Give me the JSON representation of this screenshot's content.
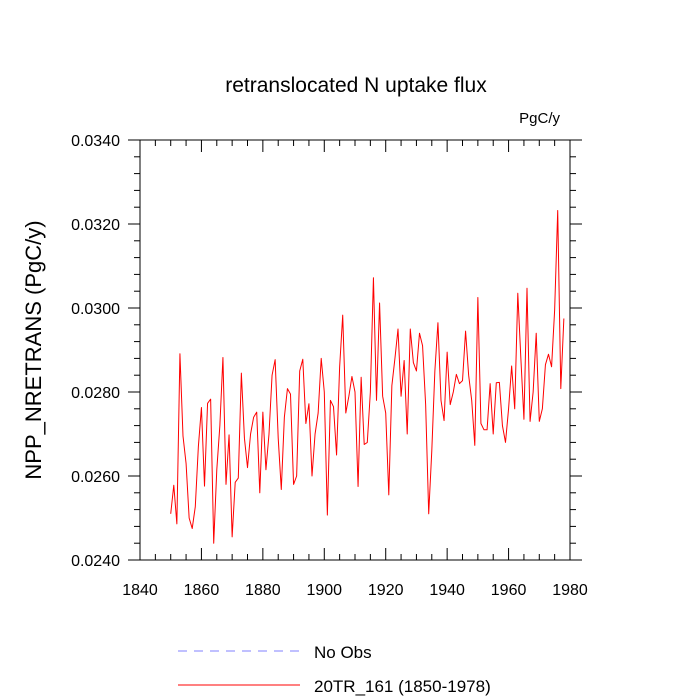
{
  "chart_data": {
    "type": "line",
    "title": "retranslocated N uptake flux",
    "units": "PgC/y",
    "ylabel": "NPP_NRETRANS  (PgC/y)",
    "xlabel": "",
    "xlim": [
      1840,
      1980
    ],
    "ylim": [
      0.024,
      0.034
    ],
    "x_ticks": [
      "1840",
      "1860",
      "1880",
      "1900",
      "1920",
      "1940",
      "1960",
      "1980"
    ],
    "y_ticks": [
      "0.0240",
      "0.0260",
      "0.0280",
      "0.0300",
      "0.0320",
      "0.0340"
    ],
    "grid": false,
    "legend_position": "bottom",
    "legend": [
      {
        "label": "No Obs",
        "color": "#8080ff",
        "style": "dashed"
      },
      {
        "label": "20TR_161 (1850-1978)",
        "color": "#ff0000",
        "style": "solid"
      }
    ],
    "series": [
      {
        "name": "20TR_161 (1850-1978)",
        "color": "#ff0000",
        "x_start": 1850,
        "x_step": 1,
        "values": [
          0.0251,
          0.02578,
          0.02486,
          0.02891,
          0.02695,
          0.0263,
          0.025,
          0.02475,
          0.02527,
          0.0267,
          0.02763,
          0.02576,
          0.02773,
          0.02783,
          0.0244,
          0.02615,
          0.0272,
          0.02882,
          0.0258,
          0.02698,
          0.02455,
          0.02585,
          0.02595,
          0.02845,
          0.0269,
          0.0262,
          0.027,
          0.0274,
          0.02752,
          0.0256,
          0.02752,
          0.02615,
          0.027,
          0.0284,
          0.02877,
          0.0269,
          0.02568,
          0.0274,
          0.02808,
          0.02795,
          0.0258,
          0.026,
          0.0285,
          0.02878,
          0.02725,
          0.02772,
          0.026,
          0.027,
          0.0275,
          0.0288,
          0.028,
          0.02507,
          0.0278,
          0.02765,
          0.0265,
          0.0286,
          0.02983,
          0.0275,
          0.0279,
          0.02837,
          0.028,
          0.02575,
          0.02835,
          0.02675,
          0.0268,
          0.028,
          0.03072,
          0.0278,
          0.03012,
          0.0279,
          0.0275,
          0.02555,
          0.02815,
          0.0288,
          0.0295,
          0.0279,
          0.02875,
          0.027,
          0.0295,
          0.0287,
          0.0285,
          0.0294,
          0.0291,
          0.0277,
          0.0251,
          0.0266,
          0.0285,
          0.02965,
          0.0278,
          0.02732,
          0.02895,
          0.0277,
          0.028,
          0.02842,
          0.0282,
          0.02827,
          0.02945,
          0.0284,
          0.0278,
          0.02673,
          0.03025,
          0.02725,
          0.0271,
          0.0271,
          0.0282,
          0.027,
          0.02822,
          0.02823,
          0.0272,
          0.0268,
          0.0276,
          0.02862,
          0.0276,
          0.03035,
          0.0288,
          0.02735,
          0.03047,
          0.0273,
          0.028,
          0.0294,
          0.0273,
          0.0276,
          0.02865,
          0.0289,
          0.0286,
          0.02995,
          0.03232,
          0.02808,
          0.02975
        ]
      },
      {
        "name": "No Obs",
        "color": "#8080ff",
        "values": []
      }
    ]
  }
}
